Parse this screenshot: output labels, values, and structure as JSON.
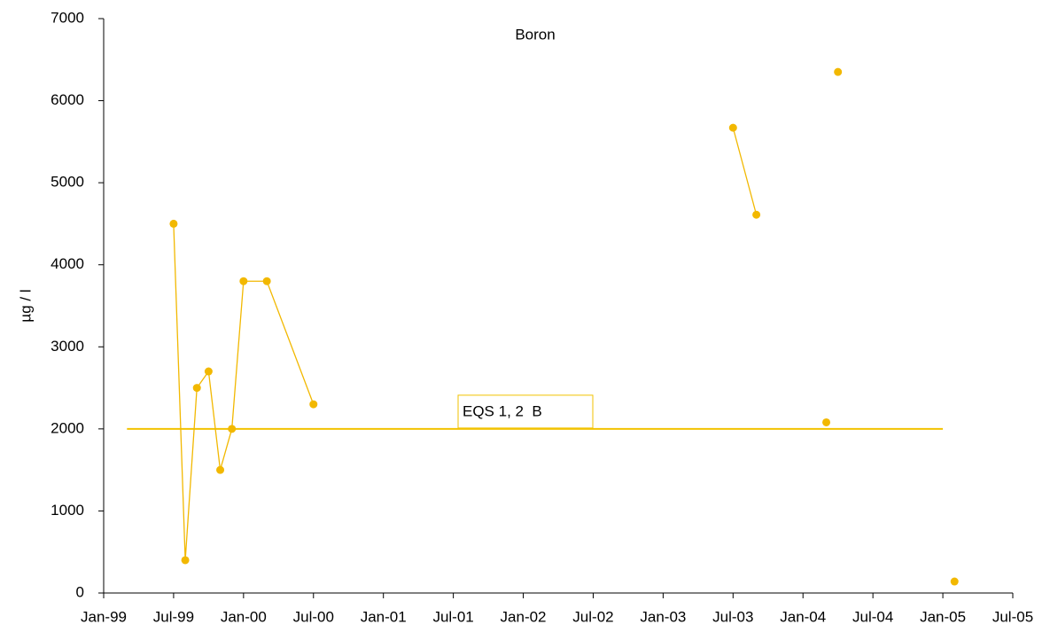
{
  "chart_data": {
    "type": "line",
    "title": "Boron",
    "y_label": "µg / l",
    "x": [
      "1999-07",
      "1999-08",
      "1999-09",
      "1999-10",
      "1999-11",
      "1999-12",
      "2000-01",
      "2000-03",
      "2000-07",
      null,
      "2003-07",
      "2003-09",
      null,
      "2004-03",
      null,
      "2004-04",
      null,
      "2005-02"
    ],
    "series": [
      {
        "name": "Boron",
        "color": "#f2b800",
        "values": [
          4500,
          400,
          2500,
          2700,
          1500,
          2000,
          3800,
          3800,
          2300,
          null,
          5670,
          4610,
          null,
          2080,
          null,
          6350,
          null,
          140
        ]
      }
    ],
    "reference_line": {
      "label": "EQS 1, 2  B",
      "value": 2000,
      "x": [
        "1999-03",
        "2005-01"
      ],
      "color": "#f2c200"
    },
    "xlim": [
      "1999-01",
      "2005-07"
    ],
    "xticks": [
      {
        "value": "1999-01",
        "label": "Jan-99"
      },
      {
        "value": "1999-07",
        "label": "Jul-99"
      },
      {
        "value": "2000-01",
        "label": "Jan-00"
      },
      {
        "value": "2000-07",
        "label": "Jul-00"
      },
      {
        "value": "2001-01",
        "label": "Jan-01"
      },
      {
        "value": "2001-07",
        "label": "Jul-01"
      },
      {
        "value": "2002-01",
        "label": "Jan-02"
      },
      {
        "value": "2002-07",
        "label": "Jul-02"
      },
      {
        "value": "2003-01",
        "label": "Jan-03"
      },
      {
        "value": "2003-07",
        "label": "Jul-03"
      },
      {
        "value": "2004-01",
        "label": "Jan-04"
      },
      {
        "value": "2004-07",
        "label": "Jul-04"
      },
      {
        "value": "2005-01",
        "label": "Jan-05"
      },
      {
        "value": "2005-07",
        "label": "Jul-05"
      }
    ],
    "ylim": [
      0,
      7000
    ],
    "yticks": [
      0,
      1000,
      2000,
      3000,
      4000,
      5000,
      6000,
      7000
    ],
    "grid": false
  }
}
